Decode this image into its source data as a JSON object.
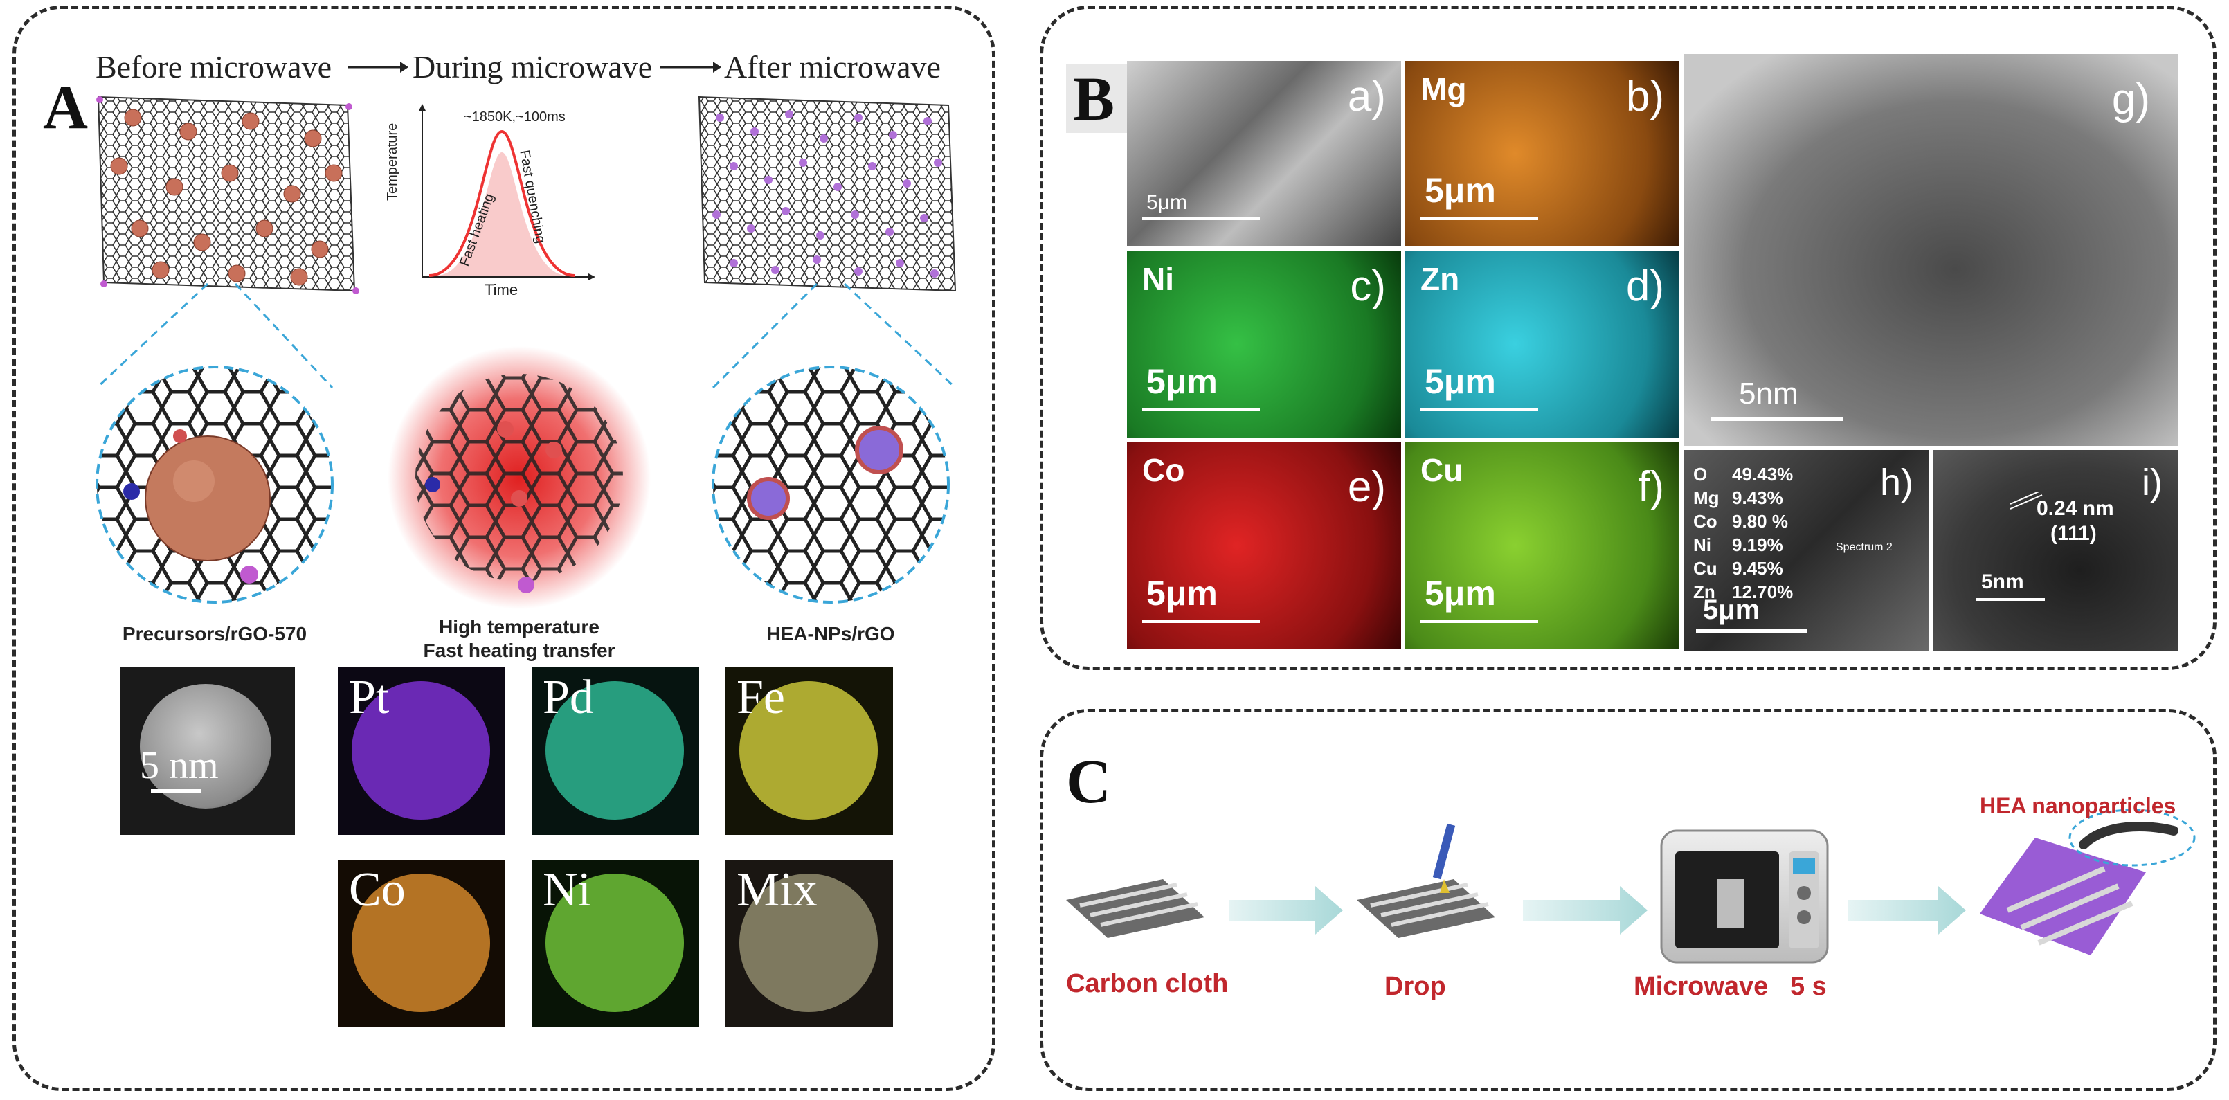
{
  "panel_a": {
    "label": "A",
    "stage_before": "Before microwave",
    "stage_during": "During microwave",
    "stage_after": "After microwave",
    "chart": {
      "annotation": "~1850K,~100ms",
      "ylabel": "Temperature",
      "xlabel": "Time",
      "heating": "Fast heating",
      "quenching": "Fast quenching"
    },
    "caption_left": "Precursors/rGO-570",
    "caption_mid_1": "High temperature",
    "caption_mid_2": "Fast heating transfer",
    "caption_right": "HEA-NPs/rGO",
    "scale_bar": "5 nm",
    "eds_tiles": [
      {
        "label": "Pt",
        "color": "#7b2fd0"
      },
      {
        "label": "Pd",
        "color": "#2fbf9a"
      },
      {
        "label": "Fe",
        "color": "#c8c43a"
      },
      {
        "label": "Co",
        "color": "#d0862a"
      },
      {
        "label": "Ni",
        "color": "#6fbf38"
      },
      {
        "label": "Mix",
        "color": "#8a8468"
      }
    ]
  },
  "panel_b": {
    "label": "B",
    "tiles": [
      {
        "element": "",
        "sub": "a)",
        "scale": "5μm",
        "color": "#8f8f8f"
      },
      {
        "element": "Mg",
        "sub": "b)",
        "scale": "5μm",
        "color": "#c8721a"
      },
      {
        "element": "Ni",
        "sub": "c)",
        "scale": "5μm",
        "color": "#2aa83a"
      },
      {
        "element": "Zn",
        "sub": "d)",
        "scale": "5μm",
        "color": "#2ab6c8"
      },
      {
        "element": "Co",
        "sub": "e)",
        "scale": "5μm",
        "color": "#c21f1f"
      },
      {
        "element": "Cu",
        "sub": "f)",
        "scale": "5μm",
        "color": "#7ab52a"
      }
    ],
    "tem_g": {
      "sub": "g)",
      "scale": "5nm"
    },
    "eds_h": {
      "sub": "h)",
      "scale": "5μm",
      "spectrum": "Spectrum 2",
      "rows": [
        {
          "el": "O",
          "val": "49.43%"
        },
        {
          "el": "Mg",
          "val": "9.43%"
        },
        {
          "el": "Co",
          "val": "9.80 %"
        },
        {
          "el": "Ni",
          "val": "9.19%"
        },
        {
          "el": "Cu",
          "val": "9.45%"
        },
        {
          "el": "Zn",
          "val": "12.70%"
        }
      ]
    },
    "hrtem_i": {
      "sub": "i)",
      "spacing": "0.24 nm",
      "plane": "(111)",
      "scale": "5nm"
    }
  },
  "panel_c": {
    "label": "C",
    "step1": "Carbon cloth",
    "step2": "Drop",
    "step3": "Microwave   5 s",
    "product": "HEA nanoparticles"
  }
}
